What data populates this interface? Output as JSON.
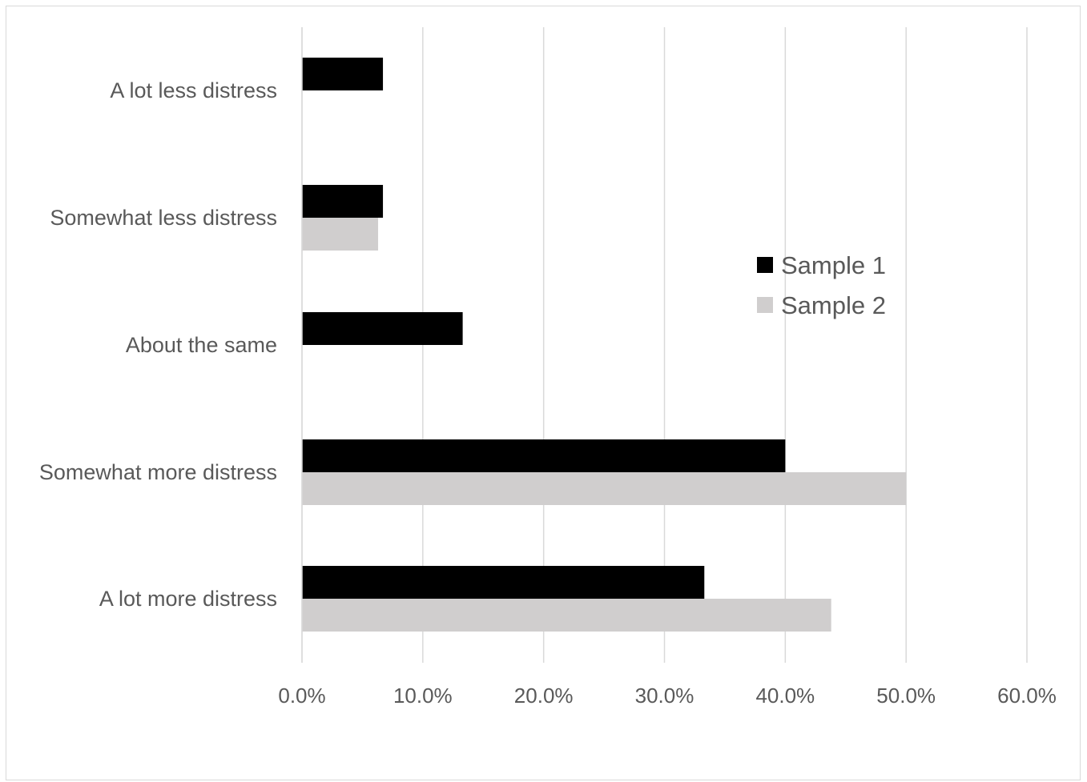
{
  "chart_data": {
    "type": "bar",
    "orientation": "horizontal",
    "categories": [
      "A lot less distress",
      "Somewhat less distress",
      "About the same",
      "Somewhat more distress",
      "A lot more distress"
    ],
    "series": [
      {
        "name": "Sample 1",
        "color": "#000000",
        "values": [
          6.7,
          6.7,
          13.3,
          40.0,
          33.3
        ]
      },
      {
        "name": "Sample 2",
        "color": "#d0cece",
        "values": [
          0.0,
          6.3,
          0.0,
          50.0,
          43.8
        ]
      }
    ],
    "xlim": [
      0,
      60
    ],
    "xticks": [
      0,
      10,
      20,
      30,
      40,
      50,
      60
    ],
    "xtick_labels": [
      "0.0%",
      "10.0%",
      "20.0%",
      "30.0%",
      "40.0%",
      "50.0%",
      "60.0%"
    ],
    "grid": "vertical",
    "legend_position": "right"
  }
}
